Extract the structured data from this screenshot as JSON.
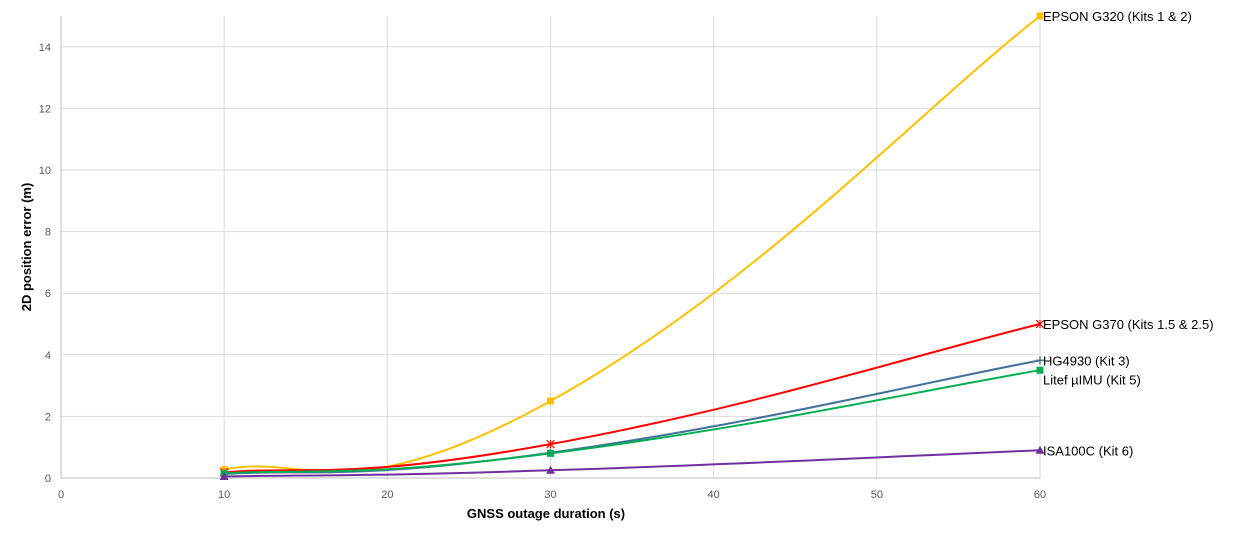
{
  "chart_data": {
    "type": "line",
    "xlabel": "GNSS outage duration (s)",
    "ylabel": "2D position error (m)",
    "xlim": [
      0,
      60
    ],
    "ylim": [
      0,
      15
    ],
    "x_ticks": [
      0,
      10,
      20,
      30,
      40,
      50,
      60
    ],
    "y_ticks": [
      0,
      2,
      4,
      6,
      8,
      10,
      12,
      14
    ],
    "grid": true,
    "legend": "labels at line ends (right)",
    "x": [
      10,
      30,
      60
    ],
    "series": [
      {
        "name": "EPSON G320 (Kits 1 & 2)",
        "values": [
          0.27,
          2.5,
          15.0
        ],
        "color": "#FFC000",
        "marker": "square"
      },
      {
        "name": "EPSON G370 (Kits 1.5 & 2.5)",
        "values": [
          0.18,
          1.1,
          5.0
        ],
        "color": "#FF0000",
        "marker": "star"
      },
      {
        "name": "HG4930 (Kit 3)",
        "values": [
          0.13,
          0.82,
          3.82
        ],
        "color": "#44719B",
        "marker": "plus"
      },
      {
        "name": "Litef µIMU (Kit 5)",
        "values": [
          0.15,
          0.8,
          3.5
        ],
        "color": "#00B050",
        "marker": "square"
      },
      {
        "name": "ISA100C (Kit 6)",
        "values": [
          0.05,
          0.25,
          0.9
        ],
        "color": "#7030A0",
        "marker": "triangle"
      }
    ]
  }
}
